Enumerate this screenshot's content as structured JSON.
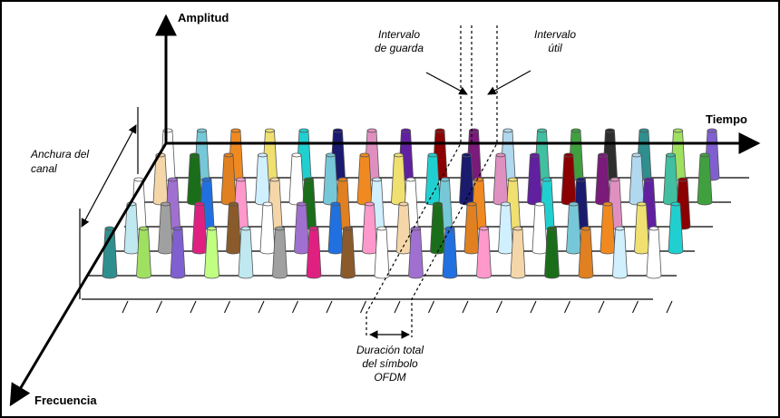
{
  "axes": {
    "amplitude": "Amplitud",
    "time": "Tiempo",
    "frequency": "Frecuencia"
  },
  "labels": {
    "guard_interval": [
      "Intervalo",
      "de guarda"
    ],
    "useful_interval": [
      "Intervalo",
      "útil"
    ],
    "channel_width": [
      "Anchura del",
      "canal"
    ],
    "symbol_duration": [
      "Duración total",
      "del símbolo",
      "OFDM"
    ]
  }
}
